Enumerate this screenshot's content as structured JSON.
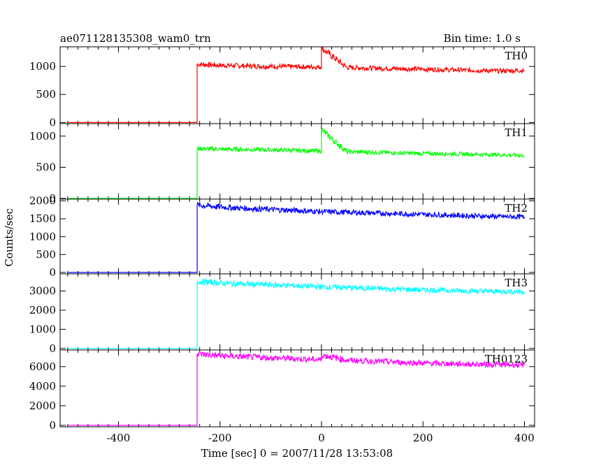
{
  "chart_data": {
    "type": "line",
    "title_left": "ae071128135308_wam0_trn",
    "title_right": "Bin time: 1.0 s",
    "xlabel": "Time [sec] 0 = 2007/11/28 13:53:08",
    "ylabel": "Counts/sec",
    "xlim": [
      -515,
      420
    ],
    "x_ticks": [
      -400,
      -200,
      0,
      200,
      400
    ],
    "grid": false,
    "panels": [
      {
        "name": "TH0",
        "color": "#ff0000",
        "ylim": [
          -20,
          1350
        ],
        "y_ticks": [
          0,
          500,
          1000
        ],
        "x": [
          -500,
          -245,
          -245,
          -200,
          -150,
          -100,
          -50,
          0,
          0,
          50,
          100,
          150,
          200,
          250,
          300,
          350,
          400
        ],
        "y": [
          0,
          0,
          1040,
          1020,
          1010,
          1000,
          995,
          990,
          1330,
          980,
          970,
          960,
          950,
          940,
          930,
          920,
          930
        ]
      },
      {
        "name": "TH1",
        "color": "#00ff00",
        "ylim": [
          -10,
          1200
        ],
        "y_ticks": [
          0,
          500,
          1000
        ],
        "x": [
          -500,
          -245,
          -245,
          -200,
          -150,
          -100,
          -50,
          0,
          0,
          50,
          100,
          150,
          200,
          250,
          300,
          350,
          400
        ],
        "y": [
          0,
          0,
          800,
          790,
          785,
          780,
          770,
          760,
          1100,
          750,
          740,
          730,
          720,
          715,
          710,
          700,
          690
        ]
      },
      {
        "name": "TH2",
        "color": "#0000ff",
        "ylim": [
          -40,
          2050
        ],
        "y_ticks": [
          0,
          500,
          1000,
          1500,
          2000
        ],
        "x": [
          -500,
          -245,
          -245,
          -200,
          -150,
          -100,
          -50,
          0,
          50,
          100,
          150,
          200,
          250,
          300,
          350,
          400
        ],
        "y": [
          0,
          0,
          1880,
          1830,
          1790,
          1760,
          1730,
          1700,
          1680,
          1660,
          1640,
          1620,
          1600,
          1580,
          1560,
          1550
        ]
      },
      {
        "name": "TH3",
        "color": "#00ffff",
        "ylim": [
          -80,
          3900
        ],
        "y_ticks": [
          0,
          1000,
          2000,
          3000
        ],
        "x": [
          -500,
          -245,
          -245,
          -200,
          -150,
          -100,
          -50,
          0,
          50,
          100,
          150,
          200,
          250,
          300,
          350,
          400
        ],
        "y": [
          0,
          0,
          3500,
          3420,
          3360,
          3320,
          3280,
          3220,
          3180,
          3140,
          3100,
          3060,
          3030,
          3000,
          2980,
          2960
        ]
      },
      {
        "name": "TH0123",
        "color": "#ff00ff",
        "ylim": [
          -150,
          7700
        ],
        "y_ticks": [
          0,
          2000,
          4000,
          6000
        ],
        "x": [
          -500,
          -245,
          -245,
          -200,
          -150,
          -100,
          -50,
          0,
          0,
          50,
          100,
          150,
          200,
          250,
          300,
          350,
          400
        ],
        "y": [
          0,
          0,
          7300,
          7100,
          7000,
          6900,
          6800,
          6700,
          7200,
          6650,
          6550,
          6450,
          6350,
          6300,
          6250,
          6200,
          6150
        ]
      }
    ]
  }
}
